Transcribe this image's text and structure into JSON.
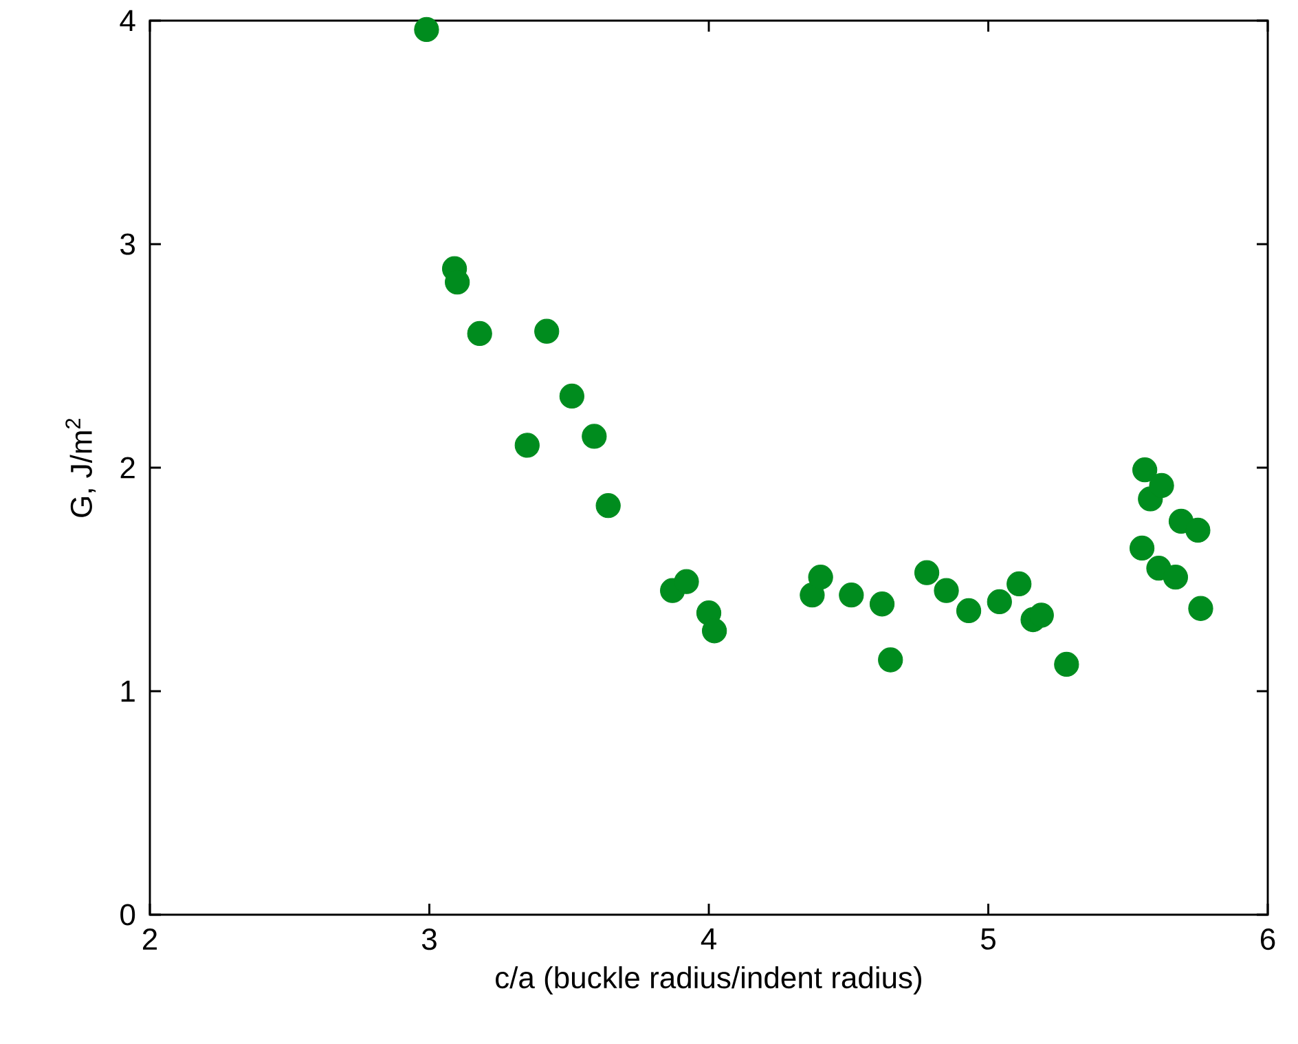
{
  "chart_data": {
    "type": "scatter",
    "xlabel": "c/a (buckle radius/indent radius)",
    "ylabel": "G, J/m$^{2}$",
    "xlim": [
      2,
      6
    ],
    "ylim": [
      0,
      4
    ],
    "xticks": [
      2,
      3,
      4,
      5,
      6
    ],
    "yticks": [
      0,
      1,
      2,
      3,
      4
    ],
    "marker": "circle",
    "series": [
      {
        "color": "#008c1e",
        "x": [
          2.99,
          3.09,
          3.1,
          3.18,
          3.42,
          3.35,
          3.51,
          3.59,
          3.64,
          3.87,
          3.92,
          4.0,
          4.02,
          4.37,
          4.4,
          4.51,
          4.62,
          4.65,
          4.78,
          4.85,
          4.93,
          5.04,
          5.11,
          5.16,
          5.19,
          5.28,
          5.56,
          5.58,
          5.62,
          5.69,
          5.75,
          5.55,
          5.61,
          5.67,
          5.76
        ],
        "values": [
          3.96,
          2.89,
          2.83,
          2.6,
          2.61,
          2.1,
          2.32,
          2.14,
          1.83,
          1.45,
          1.49,
          1.35,
          1.27,
          1.43,
          1.51,
          1.43,
          1.39,
          1.14,
          1.53,
          1.45,
          1.36,
          1.4,
          1.48,
          1.32,
          1.34,
          1.12,
          1.99,
          1.86,
          1.92,
          1.76,
          1.72,
          1.64,
          1.55,
          1.51,
          1.37
        ]
      }
    ]
  }
}
